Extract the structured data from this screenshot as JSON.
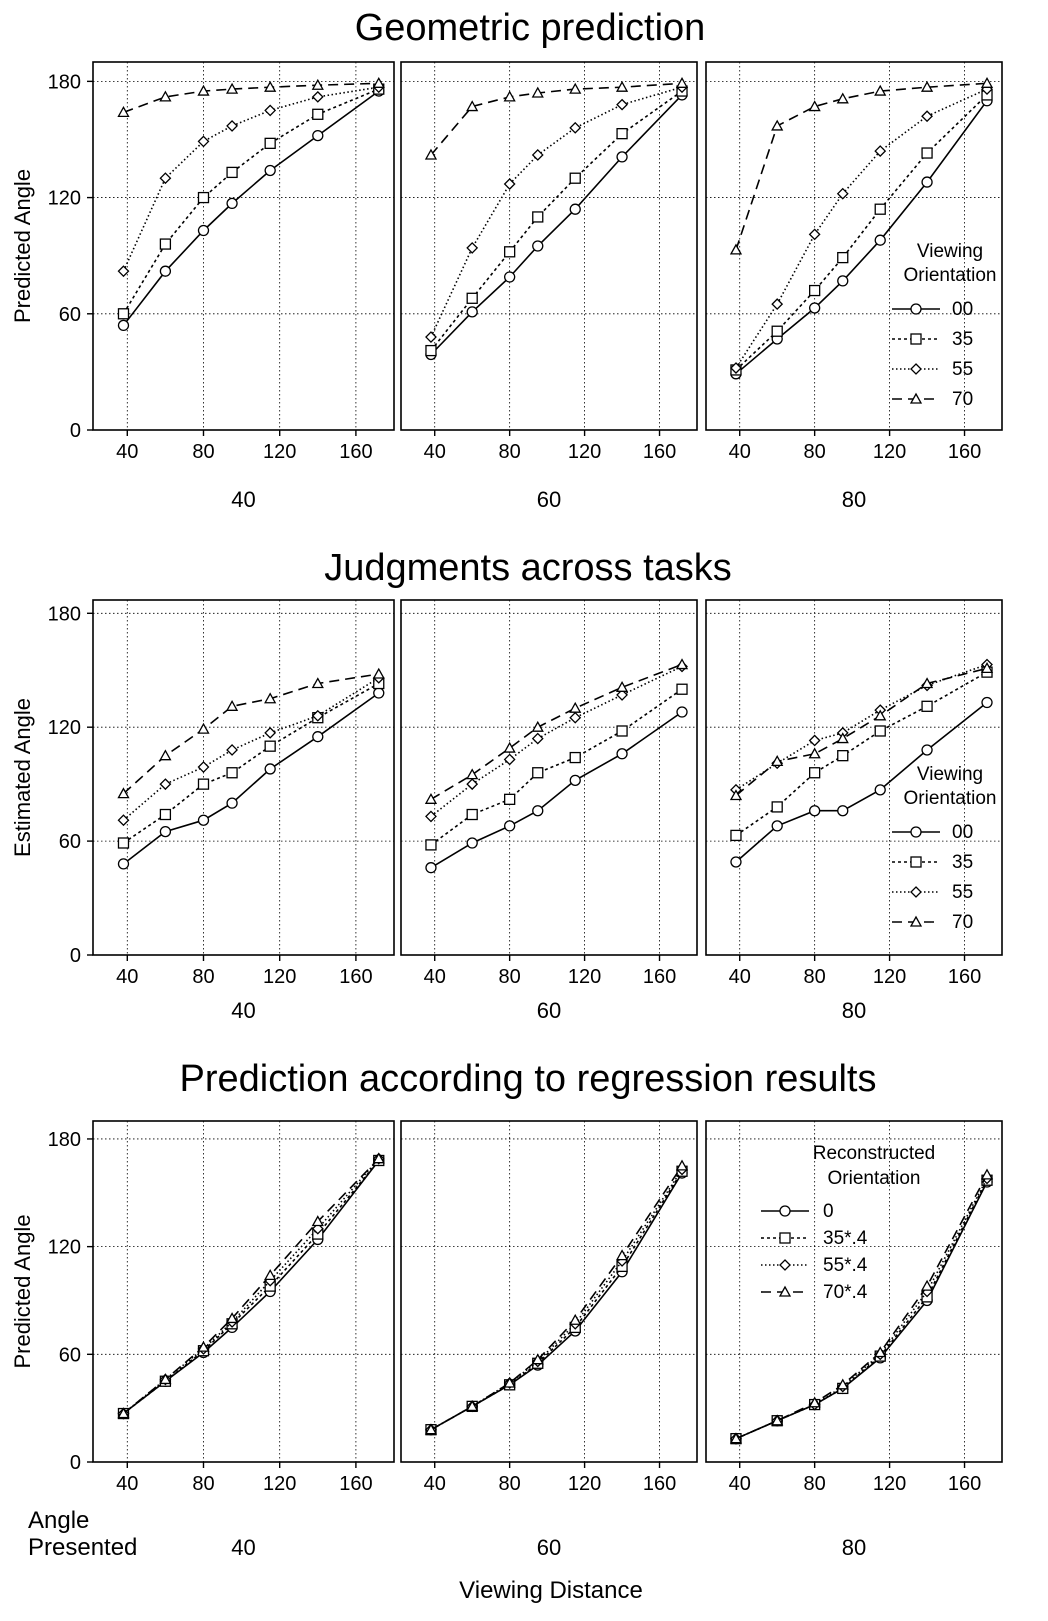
{
  "figure": {
    "shared_x_tick_labels": [
      "40",
      "80",
      "120",
      "160"
    ],
    "bottom_axis": {
      "angle_label_line1": "Angle",
      "angle_label_line2": "Presented",
      "xlabel": "Viewing Distance"
    }
  },
  "chart_data": [
    {
      "type": "line",
      "title": "Geometric prediction",
      "ylabel": "Predicted Angle",
      "yticks": [
        "0",
        "60",
        "120",
        "180"
      ],
      "ylim": [
        0,
        190
      ],
      "xlim": [
        22,
        180
      ],
      "x": [
        38,
        60,
        80,
        95,
        115,
        140,
        172
      ],
      "legend": {
        "title_line1": "Viewing",
        "title_line2": "Orientation",
        "placement": "right",
        "panel": 2
      },
      "panels": [
        {
          "label": "40",
          "series": [
            {
              "name": "00",
              "marker": "circle",
              "dash": "solid",
              "values": [
                54,
                82,
                103,
                117,
                134,
                152,
                175
              ]
            },
            {
              "name": "35",
              "marker": "square",
              "dash": "dotted",
              "values": [
                60,
                96,
                120,
                133,
                148,
                163,
                176
              ]
            },
            {
              "name": "55",
              "marker": "diamond",
              "dash": "dotted-fine",
              "values": [
                82,
                130,
                149,
                157,
                165,
                172,
                177
              ]
            },
            {
              "name": "70",
              "marker": "triangle",
              "dash": "dashed",
              "values": [
                164,
                172,
                175,
                176,
                177,
                178,
                179
              ]
            }
          ]
        },
        {
          "label": "60",
          "series": [
            {
              "name": "00",
              "marker": "circle",
              "dash": "solid",
              "values": [
                39,
                61,
                79,
                95,
                114,
                141,
                173
              ]
            },
            {
              "name": "35",
              "marker": "square",
              "dash": "dotted",
              "values": [
                41,
                68,
                92,
                110,
                130,
                153,
                175
              ]
            },
            {
              "name": "55",
              "marker": "diamond",
              "dash": "dotted-fine",
              "values": [
                48,
                94,
                127,
                142,
                156,
                168,
                177
              ]
            },
            {
              "name": "70",
              "marker": "triangle",
              "dash": "dashed",
              "values": [
                142,
                167,
                172,
                174,
                176,
                177,
                179
              ]
            }
          ]
        },
        {
          "label": "80",
          "series": [
            {
              "name": "00",
              "marker": "circle",
              "dash": "solid",
              "values": [
                29,
                47,
                63,
                77,
                98,
                128,
                170
              ]
            },
            {
              "name": "35",
              "marker": "square",
              "dash": "dotted",
              "values": [
                31,
                51,
                72,
                89,
                114,
                143,
                173
              ]
            },
            {
              "name": "55",
              "marker": "diamond",
              "dash": "dotted-fine",
              "values": [
                32,
                65,
                101,
                122,
                144,
                162,
                176
              ]
            },
            {
              "name": "70",
              "marker": "triangle",
              "dash": "dashed",
              "values": [
                93,
                157,
                167,
                171,
                175,
                177,
                179
              ]
            }
          ]
        }
      ]
    },
    {
      "type": "line",
      "title": "Judgments across tasks",
      "ylabel": "Estimated Angle",
      "yticks": [
        "0",
        "60",
        "120",
        "180"
      ],
      "ylim": [
        0,
        187
      ],
      "xlim": [
        22,
        180
      ],
      "x": [
        38,
        60,
        80,
        95,
        115,
        140,
        172
      ],
      "legend": {
        "title_line1": "Viewing",
        "title_line2": "Orientation",
        "placement": "right",
        "panel": 2
      },
      "panels": [
        {
          "label": "40",
          "series": [
            {
              "name": "00",
              "marker": "circle",
              "dash": "solid",
              "values": [
                48,
                65,
                71,
                80,
                98,
                115,
                138
              ]
            },
            {
              "name": "35",
              "marker": "square",
              "dash": "dotted",
              "values": [
                59,
                74,
                90,
                96,
                110,
                125,
                143
              ]
            },
            {
              "name": "55",
              "marker": "diamond",
              "dash": "dotted-fine",
              "values": [
                71,
                90,
                99,
                108,
                117,
                126,
                146
              ]
            },
            {
              "name": "70",
              "marker": "triangle",
              "dash": "dashed",
              "values": [
                85,
                105,
                119,
                131,
                135,
                143,
                148
              ]
            }
          ]
        },
        {
          "label": "60",
          "series": [
            {
              "name": "00",
              "marker": "circle",
              "dash": "solid",
              "values": [
                46,
                59,
                68,
                76,
                92,
                106,
                128
              ]
            },
            {
              "name": "35",
              "marker": "square",
              "dash": "dotted",
              "values": [
                58,
                74,
                82,
                96,
                104,
                118,
                140
              ]
            },
            {
              "name": "55",
              "marker": "diamond",
              "dash": "dotted-fine",
              "values": [
                73,
                90,
                103,
                114,
                125,
                137,
                152
              ]
            },
            {
              "name": "70",
              "marker": "triangle",
              "dash": "dashed",
              "values": [
                82,
                95,
                109,
                120,
                130,
                141,
                153
              ]
            }
          ]
        },
        {
          "label": "80",
          "series": [
            {
              "name": "00",
              "marker": "circle",
              "dash": "solid",
              "values": [
                49,
                68,
                76,
                76,
                87,
                108,
                133
              ]
            },
            {
              "name": "35",
              "marker": "square",
              "dash": "dotted",
              "values": [
                63,
                78,
                96,
                105,
                118,
                131,
                149
              ]
            },
            {
              "name": "55",
              "marker": "diamond",
              "dash": "dotted-fine",
              "values": [
                87,
                101,
                113,
                117,
                129,
                142,
                153
              ]
            },
            {
              "name": "70",
              "marker": "triangle",
              "dash": "dashed",
              "values": [
                84,
                102,
                106,
                114,
                126,
                143,
                151
              ]
            }
          ]
        }
      ]
    },
    {
      "type": "line",
      "title": "Prediction according to regression results",
      "ylabel": "Predicted Angle",
      "yticks": [
        "0",
        "60",
        "120",
        "180"
      ],
      "ylim": [
        0,
        190
      ],
      "xlim": [
        22,
        180
      ],
      "x": [
        38,
        60,
        80,
        95,
        115,
        140,
        172
      ],
      "legend": {
        "title_line1": "Reconstructed",
        "title_line2": "Orientation",
        "placement": "top",
        "panel": 2
      },
      "panels": [
        {
          "label": "40",
          "series": [
            {
              "name": "0",
              "marker": "circle",
              "dash": "solid",
              "values": [
                27,
                45,
                61,
                75,
                95,
                124,
                168
              ]
            },
            {
              "name": "35*.4",
              "marker": "square",
              "dash": "dotted",
              "values": [
                27,
                45,
                62,
                77,
                98,
                127,
                168
              ]
            },
            {
              "name": "55*.4",
              "marker": "diamond",
              "dash": "dotted-fine",
              "values": [
                27,
                46,
                63,
                78,
                101,
                130,
                169
              ]
            },
            {
              "name": "70*.4",
              "marker": "triangle",
              "dash": "dashed",
              "values": [
                27,
                46,
                64,
                80,
                104,
                134,
                169
              ]
            }
          ]
        },
        {
          "label": "60",
          "series": [
            {
              "name": "0",
              "marker": "circle",
              "dash": "solid",
              "values": [
                18,
                31,
                43,
                54,
                73,
                106,
                161
              ]
            },
            {
              "name": "35*.4",
              "marker": "square",
              "dash": "dotted",
              "values": [
                18,
                31,
                43,
                55,
                75,
                109,
                162
              ]
            },
            {
              "name": "55*.4",
              "marker": "diamond",
              "dash": "dotted-fine",
              "values": [
                18,
                31,
                44,
                56,
                77,
                112,
                163
              ]
            },
            {
              "name": "70*.4",
              "marker": "triangle",
              "dash": "dashed",
              "values": [
                18,
                31,
                44,
                57,
                79,
                115,
                165
              ]
            }
          ]
        },
        {
          "label": "80",
          "series": [
            {
              "name": "0",
              "marker": "circle",
              "dash": "solid",
              "values": [
                13,
                23,
                32,
                41,
                58,
                90,
                156
              ]
            },
            {
              "name": "35*.4",
              "marker": "square",
              "dash": "dotted",
              "values": [
                13,
                23,
                32,
                41,
                59,
                92,
                157
              ]
            },
            {
              "name": "55*.4",
              "marker": "diamond",
              "dash": "dotted-fine",
              "values": [
                13,
                23,
                32,
                42,
                60,
                95,
                158
              ]
            },
            {
              "name": "70*.4",
              "marker": "triangle",
              "dash": "dashed",
              "values": [
                13,
                23,
                33,
                43,
                61,
                98,
                160
              ]
            }
          ]
        }
      ]
    }
  ]
}
